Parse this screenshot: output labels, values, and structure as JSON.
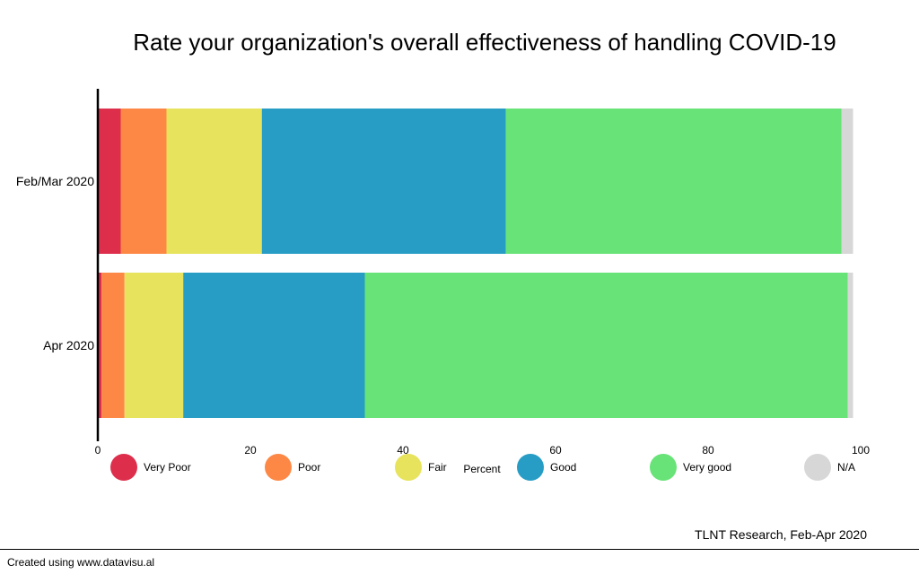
{
  "chart_data": {
    "type": "bar",
    "orientation": "horizontal",
    "stacked": true,
    "title": "Rate your organization's overall effectiveness of handling COVID-19",
    "xlabel": "Percent",
    "ylabel": "",
    "xlim": [
      0,
      100
    ],
    "x_ticks": [
      "0",
      "20",
      "40",
      "60",
      "80",
      "100"
    ],
    "categories": [
      "Feb/Mar 2020",
      "Apr 2020"
    ],
    "series": [
      {
        "name": "Very Poor",
        "color": "#dd2f4c",
        "values": [
          3,
          0.5
        ]
      },
      {
        "name": "Poor",
        "color": "#fd8845",
        "values": [
          6,
          3
        ]
      },
      {
        "name": "Fair",
        "color": "#e7e35c",
        "values": [
          12.5,
          7.7
        ]
      },
      {
        "name": "Good",
        "color": "#279dc5",
        "values": [
          32,
          23.8
        ]
      },
      {
        "name": "Very good",
        "color": "#67e377",
        "values": [
          44,
          63.3
        ]
      },
      {
        "name": "N/A",
        "color": "#d7d7d7",
        "values": [
          1.5,
          0.7
        ]
      }
    ],
    "grid": false,
    "legend_position": "bottom"
  },
  "source_note": "TLNT Research, Feb-Apr 2020",
  "footer": "Created using www.datavisu.al"
}
